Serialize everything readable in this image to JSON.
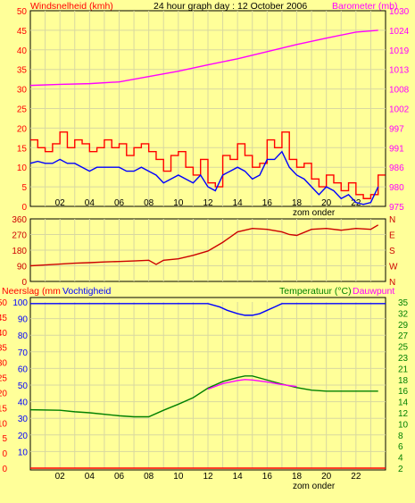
{
  "chart_data": [
    {
      "type": "line",
      "title": "24 hour graph day : 12 October 2006",
      "left_axis_label": "Windsnelheid (kmh)",
      "right_axis_label": "Barometer (mb)",
      "x_ticks": [
        "02",
        "04",
        "06",
        "08",
        "10",
        "12",
        "14",
        "16",
        "18",
        "20",
        "22"
      ],
      "x_annotation": "zom onder",
      "x_range": [
        0,
        24
      ],
      "left_ticks": [
        "0",
        "5",
        "10",
        "15",
        "20",
        "25",
        "30",
        "35",
        "40",
        "45",
        "50"
      ],
      "left_range": [
        0,
        50
      ],
      "right_ticks": [
        "975",
        "980",
        "986",
        "991",
        "997",
        "1002",
        "1008",
        "1013",
        "1019",
        "1024",
        "1030"
      ],
      "right_range": [
        975,
        1030
      ],
      "grid": true,
      "colors": {
        "gust": "#ff0000",
        "wind": "#0000ff",
        "barometer": "#ff00ff",
        "axis_left": "#ff0000",
        "axis_right": "#ff00ff"
      },
      "series": [
        {
          "id": "gust",
          "axis": "left",
          "x": [
            0,
            0.5,
            1,
            1.5,
            2,
            2.5,
            3,
            3.5,
            4,
            4.5,
            5,
            5.5,
            6,
            6.5,
            7,
            7.5,
            8,
            8.5,
            9,
            9.5,
            10,
            10.5,
            11,
            11.5,
            12,
            12.5,
            13,
            13.5,
            14,
            14.5,
            15,
            15.5,
            16,
            16.5,
            17,
            17.5,
            18,
            18.5,
            19,
            19.5,
            20,
            20.5,
            21,
            21.5,
            22,
            22.5,
            23,
            23.5
          ],
          "values": [
            17,
            15,
            14,
            16,
            19,
            15,
            17,
            16,
            14,
            15,
            17,
            15,
            16,
            13,
            15,
            16,
            14,
            12,
            9,
            13,
            14,
            10,
            8,
            12,
            6,
            5,
            13,
            12,
            16,
            13,
            10,
            11,
            17,
            15,
            19,
            12,
            10,
            11,
            7,
            5,
            8,
            6,
            4,
            6,
            3,
            2,
            3,
            8
          ]
        },
        {
          "id": "wind",
          "axis": "left",
          "x": [
            0,
            0.5,
            1,
            1.5,
            2,
            2.5,
            3,
            3.5,
            4,
            4.5,
            5,
            5.5,
            6,
            6.5,
            7,
            7.5,
            8,
            8.5,
            9,
            9.5,
            10,
            10.5,
            11,
            11.5,
            12,
            12.5,
            13,
            13.5,
            14,
            14.5,
            15,
            15.5,
            16,
            16.5,
            17,
            17.5,
            18,
            18.5,
            19,
            19.5,
            20,
            20.5,
            21,
            21.5,
            22,
            22.5,
            23,
            23.5
          ],
          "values": [
            11,
            11.5,
            11,
            11,
            12,
            11,
            11,
            10,
            9,
            10,
            10,
            10,
            10,
            9,
            9,
            10,
            9,
            8,
            6,
            7,
            8,
            7,
            6,
            8,
            5,
            4,
            8,
            9,
            10,
            9,
            7,
            8,
            12,
            12,
            14,
            10,
            8,
            7,
            5,
            3,
            5,
            4,
            2,
            3,
            1,
            0.5,
            1,
            5
          ]
        },
        {
          "id": "barometer",
          "axis": "right",
          "x": [
            0,
            2,
            4,
            6,
            8,
            10,
            12,
            14,
            16,
            18,
            20,
            22,
            23.5
          ],
          "values": [
            1009,
            1009.3,
            1009.5,
            1010,
            1011.5,
            1013,
            1014.8,
            1016.5,
            1018.5,
            1020.5,
            1022.3,
            1024,
            1024.5
          ]
        }
      ]
    },
    {
      "type": "line",
      "left_ticks": [
        "0",
        "90",
        "180",
        "270",
        "360"
      ],
      "left_range": [
        0,
        360
      ],
      "right_ticks": [
        "N",
        "W",
        "S",
        "E",
        "N"
      ],
      "x_range": [
        0,
        24
      ],
      "grid": true,
      "colors": {
        "direction": "#cc0000"
      },
      "series": [
        {
          "id": "wind_direction",
          "x": [
            0,
            1,
            2,
            3,
            4,
            5,
            6,
            7,
            8,
            8.5,
            9,
            10,
            11,
            12,
            12.5,
            13,
            13.5,
            14,
            15,
            16,
            17,
            17.5,
            18,
            19,
            20,
            21,
            22,
            23,
            23.5
          ],
          "values": [
            90,
            95,
            100,
            105,
            108,
            112,
            115,
            118,
            122,
            98,
            122,
            130,
            150,
            175,
            200,
            225,
            255,
            285,
            305,
            300,
            285,
            270,
            265,
            300,
            305,
            295,
            305,
            300,
            325
          ]
        }
      ]
    },
    {
      "type": "line",
      "left_axis_label": "Neerslag (mm",
      "left_axis_label2": "Vochtigheid",
      "right_axis_label": "Temperatuur (°C)",
      "right_axis_label2": "Dauwpunt",
      "x_ticks": [
        "02",
        "04",
        "06",
        "08",
        "10",
        "12",
        "14",
        "16",
        "18",
        "20",
        "22"
      ],
      "x_annotation": "zom onder",
      "x_range": [
        0,
        24
      ],
      "left_ticks_outer": [
        "0",
        "0",
        "5",
        "10",
        "15",
        "20",
        "25",
        "30",
        "35",
        "40",
        "45",
        "50"
      ],
      "left_ticks_inner": [
        "10",
        "20",
        "30",
        "40",
        "50",
        "60",
        "70",
        "80",
        "90",
        "100"
      ],
      "left_range": [
        0,
        100
      ],
      "right_ticks": [
        "2",
        "4",
        "6",
        "8",
        "10",
        "12",
        "14",
        "16",
        "18",
        "21",
        "23",
        "25",
        "27",
        "29",
        "32",
        "35"
      ],
      "right_range": [
        2,
        35
      ],
      "grid": true,
      "colors": {
        "temperature": "#008000",
        "dewpoint": "#ff00ff",
        "humidity": "#0000ff",
        "rain": "#ff0000",
        "axis_left": "#ff0000",
        "axis_right": "#008000"
      },
      "series": [
        {
          "id": "humidity",
          "axis": "left_inner",
          "x": [
            0,
            12,
            12.8,
            13.3,
            14,
            14.5,
            15,
            15.5,
            16,
            16.5,
            17,
            24
          ],
          "values": [
            99,
            99,
            97,
            95,
            93,
            92,
            92,
            93,
            95,
            97,
            99,
            99
          ]
        },
        {
          "id": "temperature",
          "axis": "right",
          "x": [
            0,
            2,
            3,
            4,
            6,
            7,
            8,
            9,
            10,
            11,
            12,
            13,
            14,
            14.5,
            15,
            16,
            17,
            18,
            19,
            20,
            22,
            23.5
          ],
          "values": [
            13.6,
            13.5,
            13.2,
            13,
            12.4,
            12.2,
            12.2,
            13.5,
            14.7,
            16,
            17.9,
            19.2,
            20,
            20.3,
            20.3,
            19.5,
            18.7,
            18,
            17.5,
            17.3,
            17.3,
            17.3
          ]
        },
        {
          "id": "dewpoint",
          "axis": "right",
          "x": [
            12,
            13,
            14,
            14.5,
            15,
            16,
            17,
            18
          ],
          "values": [
            17.7,
            18.8,
            19.4,
            19.6,
            19.5,
            19.1,
            18.6,
            18.2
          ]
        },
        {
          "id": "rain",
          "axis": "left_outer",
          "x": [
            0,
            24
          ],
          "values": [
            0,
            0
          ]
        }
      ]
    }
  ]
}
